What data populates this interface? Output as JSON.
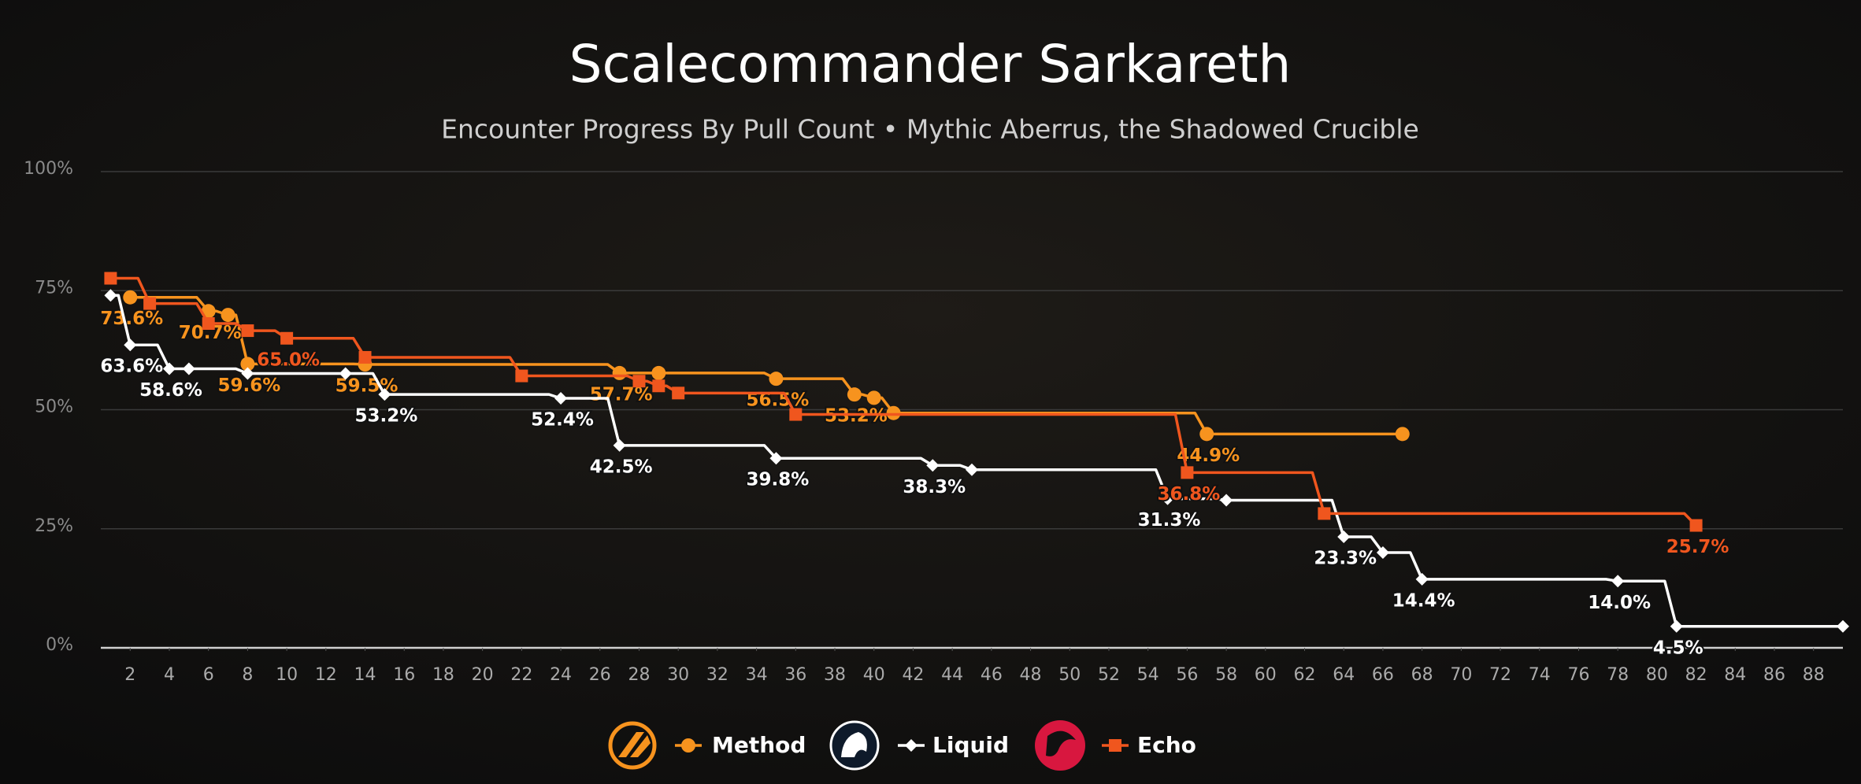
{
  "chart_data": {
    "type": "line",
    "step": true,
    "title": "Scalecommander Sarkareth",
    "subtitle": "Encounter Progress By Pull Count • Mythic Aberrus, the Shadowed Crucible",
    "xlim": [
      0.5,
      89.5
    ],
    "xticks": [
      2,
      4,
      6,
      8,
      10,
      12,
      14,
      16,
      18,
      20,
      22,
      24,
      26,
      28,
      30,
      32,
      34,
      36,
      38,
      40,
      42,
      44,
      46,
      48,
      50,
      52,
      54,
      56,
      58,
      60,
      62,
      64,
      66,
      68,
      70,
      72,
      74,
      76,
      78,
      80,
      82,
      84,
      86,
      88
    ],
    "ylim": [
      0,
      100
    ],
    "yticks": [
      {
        "value": 0,
        "label": "0%"
      },
      {
        "value": 25,
        "label": "25%"
      },
      {
        "value": 50,
        "label": "50%"
      },
      {
        "value": 75,
        "label": "75%"
      },
      {
        "value": 100,
        "label": "100%"
      }
    ],
    "grid": true,
    "series": [
      {
        "name": "Method",
        "color": "#f7931e",
        "marker": "circle",
        "x": [
          2,
          6,
          7,
          8,
          14,
          27,
          29,
          35,
          39,
          40,
          41,
          57,
          67
        ],
        "values": [
          73.6,
          70.7,
          69.9,
          59.6,
          59.5,
          57.7,
          57.7,
          56.5,
          53.2,
          52.5,
          49.3,
          44.9,
          44.9
        ],
        "value_labels": [
          "73.6%",
          "70.7%",
          null,
          "59.6%",
          "59.5%",
          "57.7%",
          null,
          "56.5%",
          "53.2%",
          null,
          null,
          "44.9%",
          null
        ]
      },
      {
        "name": "Liquid",
        "color": "#ffffff",
        "marker": "diamond",
        "x": [
          1,
          2,
          4,
          5,
          8,
          13,
          15,
          24,
          27,
          35,
          43,
          45,
          55,
          58,
          64,
          66,
          68,
          78,
          81,
          89.5
        ],
        "values": [
          74,
          63.6,
          58.6,
          58.6,
          57.6,
          57.6,
          53.2,
          52.4,
          42.5,
          39.8,
          38.3,
          37.4,
          31.3,
          31.0,
          23.3,
          20.0,
          14.4,
          14.0,
          4.5,
          4.5
        ],
        "value_labels": [
          null,
          "63.6%",
          "58.6%",
          null,
          null,
          null,
          "53.2%",
          "52.4%",
          "42.5%",
          "39.8%",
          "38.3%",
          null,
          "31.3%",
          null,
          "23.3%",
          null,
          "14.4%",
          "14.0%",
          "4.5%",
          null
        ]
      },
      {
        "name": "Echo",
        "color": "#f0561e",
        "marker": "square",
        "x": [
          1,
          3,
          6,
          8,
          10,
          14,
          22,
          28,
          29,
          30,
          36,
          56,
          63,
          82
        ],
        "values": [
          77.6,
          72.3,
          68.1,
          66.6,
          65.0,
          61.0,
          57.1,
          56.0,
          55.0,
          53.5,
          49.0,
          36.8,
          28.2,
          25.7
        ],
        "value_labels": [
          null,
          null,
          null,
          null,
          "65.0%",
          null,
          null,
          null,
          null,
          null,
          null,
          "36.8%",
          null,
          "25.7%"
        ]
      }
    ]
  }
}
